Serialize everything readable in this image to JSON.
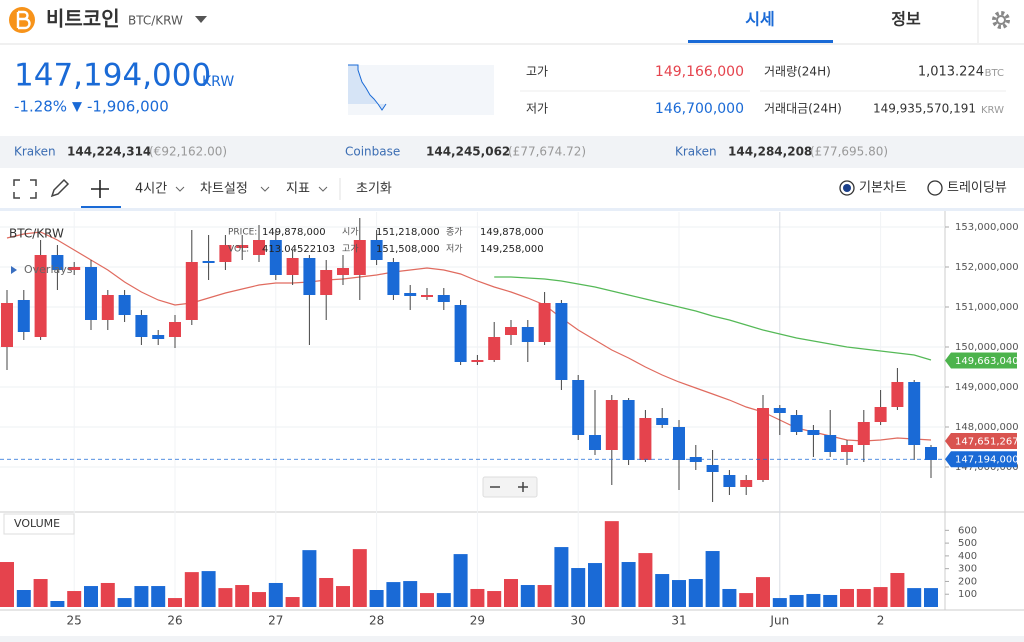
{
  "header": {
    "title": "비트코인",
    "pair": "BTC/KRW",
    "tabs": [
      "시세",
      "정보"
    ]
  },
  "price": {
    "value": "147,194,000",
    "unit": "KRW",
    "change_rate": "-1.28%",
    "arrow": "▼",
    "change": "-1,906,000"
  },
  "stats": {
    "high_label": "고가",
    "high": "149,166,000",
    "low_label": "저가",
    "low": "146,700,000",
    "volume_label": "거래량(24H)",
    "volume": "1,013.224",
    "volume_unit": "BTC",
    "amount_label": "거래대금(24H)",
    "amount": "149,935,570,191",
    "amount_unit": "KRW"
  },
  "exchanges": [
    {
      "name": "Kraken",
      "price": "144,224,314",
      "fx": "(€92,162.00)"
    },
    {
      "name": "Coinbase",
      "price": "144,245,062",
      "fx": "(£77,674.72)"
    },
    {
      "name": "Kraken",
      "price": "144,284,208",
      "fx": "(£77,695.80)"
    }
  ],
  "toolbar": {
    "interval": "4시간",
    "settings": "차트설정",
    "indicators": "지표",
    "reset": "초기화",
    "views": [
      "기본차트",
      "트레이딩뷰"
    ]
  },
  "chart_data": {
    "type": "candlestick",
    "title": "BTC/KRW",
    "overlays_label": "Overlays",
    "info": [
      {
        "label": "PRICE:",
        "value": "149,878,000"
      },
      {
        "label": "시가",
        "value": "151,218,000"
      },
      {
        "label": "종가",
        "value": "149,878,000"
      },
      {
        "label": "VOL:",
        "value": "413.04522103"
      },
      {
        "label": "고가",
        "value": "151,508,000"
      },
      {
        "label": "저가",
        "value": "149,258,000"
      }
    ],
    "categories": [
      null,
      null,
      null,
      null,
      "25",
      null,
      null,
      null,
      null,
      null,
      "26",
      null,
      null,
      null,
      null,
      null,
      "27",
      null,
      null,
      null,
      null,
      null,
      "28",
      null,
      null,
      null,
      null,
      null,
      "29",
      null,
      null,
      null,
      null,
      null,
      "30",
      null,
      null,
      null,
      null,
      null,
      "31",
      null,
      null,
      null,
      null,
      null,
      "Jun",
      null,
      null,
      null,
      null,
      null,
      "2",
      null,
      null,
      null
    ],
    "open": [
      150000000,
      151175000,
      150250000,
      152300000,
      151925000,
      152000000,
      150675000,
      151300000,
      150800000,
      150300000,
      150250000,
      150675000,
      152150000,
      152125000,
      152475000,
      152300000,
      152675000,
      151800000,
      152225000,
      151300000,
      151800000,
      151800000,
      152675000,
      152125000,
      151350000,
      151250000,
      151300000,
      151050000,
      149625000,
      149675000,
      150300000,
      150500000,
      150125000,
      151100000,
      149175000,
      147800000,
      147425000,
      148675000,
      147175000,
      148225000,
      148000000,
      147250000,
      147050000,
      146800000,
      146500000,
      146675000,
      148475000,
      148300000,
      147925000,
      147800000,
      147375000,
      147550000,
      148125000,
      148500000,
      149125000,
      147500000
    ],
    "high": [
      151425000,
      151425000,
      152675000,
      152550000,
      152125000,
      152175000,
      151425000,
      151425000,
      150925000,
      150425000,
      150800000,
      152925000,
      152800000,
      152800000,
      152800000,
      153050000,
      152925000,
      152425000,
      152300000,
      152175000,
      152300000,
      153225000,
      152925000,
      152225000,
      151550000,
      151475000,
      151475000,
      151175000,
      149800000,
      150625000,
      150675000,
      150675000,
      151375000,
      151175000,
      149300000,
      148925000,
      148800000,
      148725000,
      148425000,
      148475000,
      148175000,
      147550000,
      147425000,
      146925000,
      146800000,
      148800000,
      148550000,
      148425000,
      148050000,
      148425000,
      147675000,
      148425000,
      148925000,
      149475000,
      149175000,
      147550000
    ],
    "low": [
      149425000,
      150175000,
      150175000,
      151425000,
      151800000,
      150425000,
      150425000,
      150625000,
      150050000,
      150050000,
      149975000,
      150550000,
      151675000,
      151925000,
      152175000,
      152125000,
      151675000,
      151550000,
      150050000,
      150675000,
      151550000,
      151175000,
      152050000,
      151175000,
      150925000,
      151175000,
      150925000,
      149550000,
      149550000,
      149625000,
      150050000,
      149625000,
      150050000,
      148925000,
      147675000,
      147300000,
      146550000,
      147050000,
      147125000,
      147975000,
      146425000,
      146925000,
      146125000,
      146300000,
      146300000,
      146625000,
      147800000,
      147800000,
      147250000,
      147250000,
      147050000,
      147125000,
      148050000,
      148425000,
      147175000,
      146725000
    ],
    "close": [
      151100000,
      150375000,
      152300000,
      151925000,
      152000000,
      150675000,
      151300000,
      150800000,
      150250000,
      150200000,
      150625000,
      152125000,
      152100000,
      152550000,
      152550000,
      152675000,
      151800000,
      152225000,
      151300000,
      151925000,
      151975000,
      152675000,
      152175000,
      151300000,
      151275000,
      151300000,
      151125000,
      149625000,
      149675000,
      150250000,
      150500000,
      150125000,
      151100000,
      149175000,
      147800000,
      147425000,
      148675000,
      147175000,
      148225000,
      148050000,
      147175000,
      147125000,
      146875000,
      146500000,
      146675000,
      148475000,
      148350000,
      147875000,
      147800000,
      147375000,
      147550000,
      148125000,
      148500000,
      149125000,
      147550000,
      147175000
    ],
    "up_color": "#e5434d",
    "down_color": "#1a6ad6",
    "series": [
      {
        "color": "#e06b5f",
        "values": [
          152725000,
          152825000,
          152875000,
          152675000,
          152425000,
          152175000,
          151925000,
          151625000,
          151375000,
          151175000,
          151050000,
          151100000,
          151225000,
          151350000,
          151450000,
          151550000,
          151600000,
          151600000,
          151625000,
          151675000,
          151700000,
          151750000,
          151800000,
          151875000,
          151925000,
          151975000,
          151925000,
          151825000,
          151650000,
          151500000,
          151375000,
          151225000,
          151050000,
          150725000,
          150425000,
          150175000,
          149925000,
          149725000,
          149500000,
          149300000,
          149125000,
          148975000,
          148825000,
          148675000,
          148500000,
          148375000,
          148175000,
          147975000,
          147875000,
          147775000,
          147675000,
          147650000,
          147675000,
          147725000,
          147700000,
          147675000
        ]
      },
      {
        "color": "#55b957",
        "values": [
          null,
          null,
          null,
          null,
          null,
          null,
          null,
          null,
          null,
          null,
          null,
          null,
          null,
          null,
          null,
          null,
          null,
          null,
          null,
          null,
          null,
          null,
          null,
          null,
          null,
          null,
          null,
          null,
          null,
          151750000,
          151750000,
          151725000,
          151700000,
          151650000,
          151575000,
          151500000,
          151400000,
          151300000,
          151200000,
          151100000,
          151000000,
          150900000,
          150775000,
          150675000,
          150550000,
          150425000,
          150325000,
          150225000,
          150150000,
          150075000,
          150000000,
          149950000,
          149900000,
          149850000,
          149800000,
          149675000
        ]
      }
    ],
    "price_labels": [
      {
        "value": 149663040,
        "label": "149,663,040",
        "color": "#4cb34c"
      },
      {
        "value": 147651267,
        "label": "147,651,267",
        "color": "#d9534f"
      },
      {
        "value": 147194000,
        "label": "147,194,000",
        "color": "#1a6ad6"
      }
    ],
    "ylim": [
      145875000,
      153375000
    ],
    "yticks": [
      {
        "value": 147000000,
        "label": "147,000,000"
      },
      {
        "value": 148000000,
        "label": "148,000,000"
      },
      {
        "value": 149000000,
        "label": "149,000,000"
      },
      {
        "value": 150000000,
        "label": "150,000,000"
      },
      {
        "value": 151000000,
        "label": "151,000,000"
      },
      {
        "value": 152000000,
        "label": "152,000,000"
      },
      {
        "value": 153000000,
        "label": "153,000,000"
      }
    ],
    "grid": true,
    "volume": {
      "title": "VOLUME",
      "values": [
        352,
        133,
        219,
        47,
        125,
        164,
        188,
        70,
        164,
        164,
        70,
        273,
        281,
        148,
        172,
        117,
        188,
        78,
        445,
        227,
        164,
        453,
        133,
        195,
        203,
        109,
        109,
        414,
        141,
        125,
        219,
        172,
        172,
        469,
        305,
        344,
        672,
        352,
        422,
        258,
        211,
        219,
        438,
        141,
        109,
        234,
        70,
        94,
        102,
        94,
        141,
        141,
        156,
        266,
        148,
        148
      ],
      "ylim": [
        0,
        720
      ],
      "yticks": [
        100,
        200,
        300,
        400,
        500,
        600
      ]
    }
  }
}
